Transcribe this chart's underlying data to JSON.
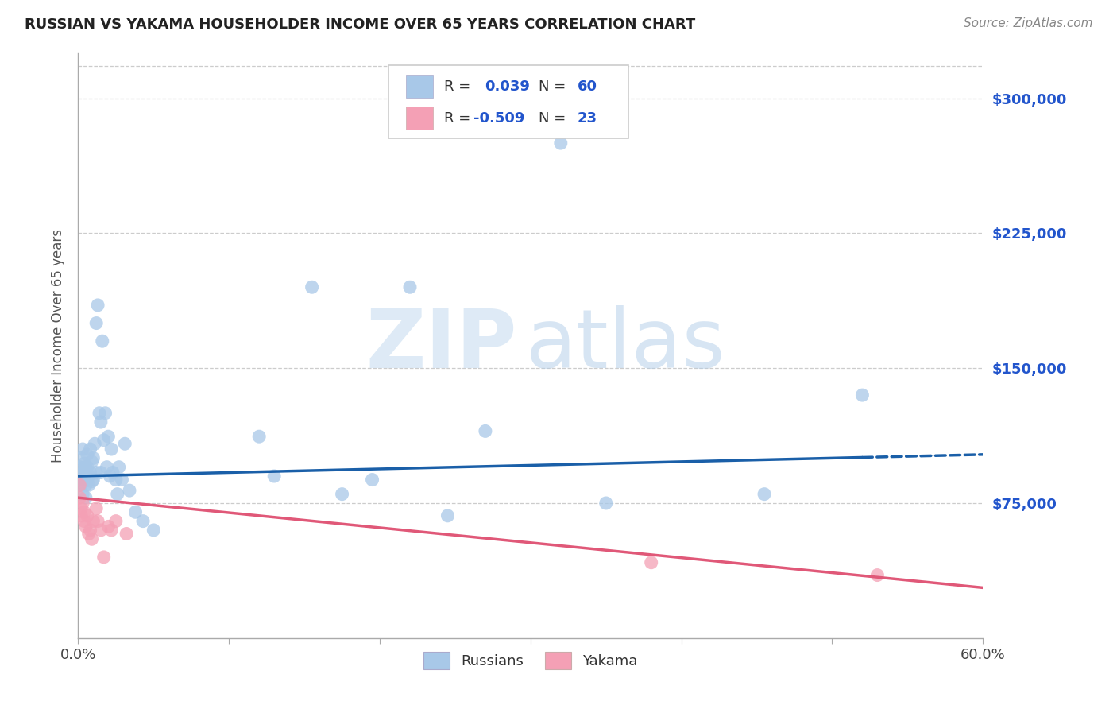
{
  "title": "RUSSIAN VS YAKAMA HOUSEHOLDER INCOME OVER 65 YEARS CORRELATION CHART",
  "source": "Source: ZipAtlas.com",
  "ylabel": "Householder Income Over 65 years",
  "xlim": [
    0,
    0.6
  ],
  "ylim": [
    0,
    325000
  ],
  "yticks": [
    0,
    75000,
    150000,
    225000,
    300000
  ],
  "xticks": [
    0.0,
    0.1,
    0.2,
    0.3,
    0.4,
    0.5,
    0.6
  ],
  "xtick_labels": [
    "0.0%",
    "",
    "",
    "",
    "",
    "",
    "60.0%"
  ],
  "russian_color": "#a8c8e8",
  "yakama_color": "#f4a0b5",
  "russian_line_color": "#1a5fa8",
  "yakama_line_color": "#e05878",
  "R_russian": "0.039",
  "N_russian": "60",
  "R_yakama": "-0.509",
  "N_yakama": "23",
  "watermark_zip": "ZIP",
  "watermark_atlas": "atlas",
  "background_color": "#ffffff",
  "grid_color": "#cccccc",
  "russian_trend_y0": 90000,
  "russian_trend_y1": 102000,
  "yakama_trend_y0": 78000,
  "yakama_trend_y1": 28000,
  "russians_x": [
    0.001,
    0.001,
    0.002,
    0.002,
    0.003,
    0.003,
    0.003,
    0.004,
    0.004,
    0.004,
    0.005,
    0.005,
    0.005,
    0.006,
    0.006,
    0.006,
    0.007,
    0.007,
    0.008,
    0.008,
    0.009,
    0.009,
    0.01,
    0.01,
    0.011,
    0.012,
    0.012,
    0.013,
    0.014,
    0.015,
    0.015,
    0.016,
    0.017,
    0.018,
    0.019,
    0.02,
    0.021,
    0.022,
    0.023,
    0.025,
    0.026,
    0.027,
    0.029,
    0.031,
    0.034,
    0.038,
    0.043,
    0.05,
    0.12,
    0.13,
    0.155,
    0.175,
    0.195,
    0.22,
    0.245,
    0.27,
    0.32,
    0.35,
    0.455,
    0.52
  ],
  "russians_y": [
    95000,
    88000,
    100000,
    85000,
    92000,
    105000,
    80000,
    97000,
    88000,
    92000,
    85000,
    95000,
    78000,
    102000,
    88000,
    95000,
    90000,
    85000,
    105000,
    92000,
    98000,
    87000,
    100000,
    88000,
    108000,
    175000,
    92000,
    185000,
    125000,
    120000,
    92000,
    165000,
    110000,
    125000,
    95000,
    112000,
    90000,
    105000,
    92000,
    88000,
    80000,
    95000,
    88000,
    108000,
    82000,
    70000,
    65000,
    60000,
    112000,
    90000,
    195000,
    80000,
    88000,
    195000,
    68000,
    115000,
    275000,
    75000,
    80000,
    135000
  ],
  "yakama_x": [
    0.001,
    0.001,
    0.002,
    0.002,
    0.003,
    0.004,
    0.004,
    0.005,
    0.006,
    0.007,
    0.008,
    0.009,
    0.01,
    0.012,
    0.013,
    0.015,
    0.017,
    0.02,
    0.022,
    0.025,
    0.032,
    0.38,
    0.53
  ],
  "yakama_y": [
    85000,
    78000,
    72000,
    68000,
    75000,
    65000,
    70000,
    62000,
    68000,
    58000,
    60000,
    55000,
    65000,
    72000,
    65000,
    60000,
    45000,
    62000,
    60000,
    65000,
    58000,
    42000,
    35000
  ]
}
